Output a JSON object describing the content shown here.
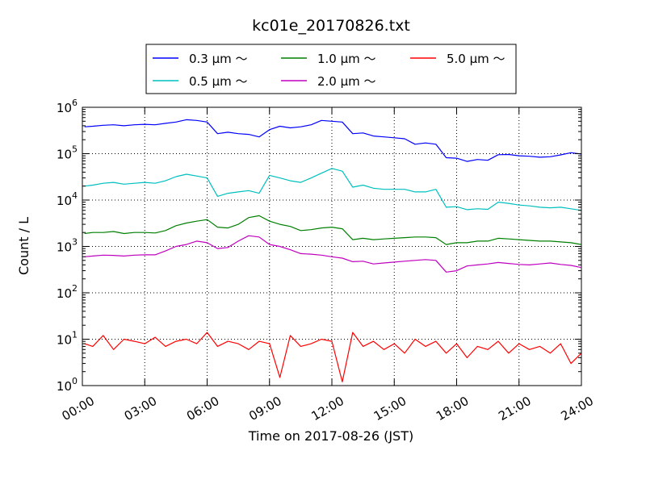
{
  "chart_data": {
    "type": "line",
    "title": "kc01e_20170826.txt",
    "xlabel": "Time on 2017-08-26 (JST)",
    "ylabel": "Count / L",
    "y_scale": "log",
    "ylim": [
      1,
      1000000
    ],
    "xlim_hours": [
      0,
      24
    ],
    "x_ticks": [
      "00:00",
      "03:00",
      "06:00",
      "09:00",
      "12:00",
      "15:00",
      "18:00",
      "21:00",
      "24:00"
    ],
    "y_ticks": [
      {
        "base": "10",
        "exp": "0"
      },
      {
        "base": "10",
        "exp": "1"
      },
      {
        "base": "10",
        "exp": "2"
      },
      {
        "base": "10",
        "exp": "3"
      },
      {
        "base": "10",
        "exp": "4"
      },
      {
        "base": "10",
        "exp": "5"
      },
      {
        "base": "10",
        "exp": "6"
      }
    ],
    "grid": true,
    "legend_placement": "top",
    "x_hours": [
      0.1,
      0.5,
      1,
      1.5,
      2,
      2.5,
      3,
      3.5,
      4,
      4.5,
      5,
      5.5,
      6,
      6.5,
      7,
      7.5,
      8,
      8.5,
      9,
      9.5,
      10,
      10.5,
      11,
      11.5,
      12,
      12.5,
      13,
      13.5,
      14,
      14.5,
      15,
      15.5,
      16,
      16.5,
      17,
      17.5,
      18,
      18.5,
      19,
      19.5,
      20,
      20.5,
      21,
      21.5,
      22,
      22.5,
      23,
      23.5,
      24
    ],
    "series": [
      {
        "name": "0.3 μm ～",
        "color": "#0000ff",
        "values": [
          380000,
          390000,
          410000,
          420000,
          400000,
          420000,
          430000,
          420000,
          450000,
          480000,
          540000,
          520000,
          480000,
          270000,
          290000,
          270000,
          260000,
          230000,
          330000,
          390000,
          360000,
          380000,
          420000,
          520000,
          500000,
          480000,
          270000,
          280000,
          240000,
          230000,
          220000,
          210000,
          160000,
          170000,
          160000,
          82000,
          80000,
          68000,
          75000,
          72000,
          95000,
          96000,
          90000,
          88000,
          84000,
          86000,
          94000,
          105000,
          98000
        ]
      },
      {
        "name": "0.5 μm ～",
        "color": "#00bfbf",
        "values": [
          20000,
          21000,
          23000,
          24000,
          22000,
          23000,
          24000,
          23000,
          26000,
          32000,
          36000,
          33000,
          30000,
          12000,
          14000,
          15000,
          16000,
          14000,
          34000,
          30000,
          26000,
          24000,
          30000,
          38000,
          48000,
          42000,
          19000,
          21000,
          18000,
          17000,
          17000,
          17000,
          15000,
          15000,
          17000,
          7000,
          7200,
          6200,
          6500,
          6300,
          9000,
          8500,
          7800,
          7500,
          7000,
          6800,
          7000,
          6500,
          6000
        ]
      },
      {
        "name": "1.0 μm ～",
        "color": "#008000",
        "values": [
          1900,
          2000,
          2000,
          2100,
          1900,
          2000,
          2000,
          1950,
          2200,
          2800,
          3200,
          3500,
          3800,
          2600,
          2500,
          3000,
          4200,
          4600,
          3500,
          3000,
          2700,
          2200,
          2300,
          2500,
          2600,
          2400,
          1400,
          1500,
          1400,
          1450,
          1500,
          1550,
          1600,
          1600,
          1550,
          1100,
          1200,
          1200,
          1300,
          1300,
          1500,
          1450,
          1400,
          1350,
          1300,
          1300,
          1250,
          1200,
          1100
        ]
      },
      {
        "name": "2.0 μm ～",
        "color": "#bf00bf",
        "values": [
          600,
          620,
          650,
          640,
          620,
          650,
          660,
          660,
          800,
          1000,
          1100,
          1300,
          1200,
          900,
          950,
          1300,
          1700,
          1600,
          1100,
          1000,
          850,
          700,
          680,
          650,
          600,
          560,
          470,
          480,
          420,
          440,
          460,
          480,
          500,
          520,
          500,
          280,
          300,
          380,
          400,
          420,
          450,
          430,
          410,
          400,
          420,
          440,
          410,
          390,
          350
        ]
      },
      {
        "name": "5.0 μm ～",
        "color": "#ff0000",
        "values": [
          8,
          7,
          12,
          6,
          10,
          9,
          8,
          11,
          7,
          9,
          10,
          8,
          14,
          7,
          9,
          8,
          6,
          9,
          8,
          1.5,
          12,
          7,
          8,
          10,
          9,
          1.2,
          14,
          7,
          9,
          6,
          8,
          5,
          10,
          7,
          9,
          5,
          8,
          4,
          7,
          6,
          9,
          5,
          8,
          6,
          7,
          5,
          8,
          3,
          5
        ]
      }
    ]
  }
}
